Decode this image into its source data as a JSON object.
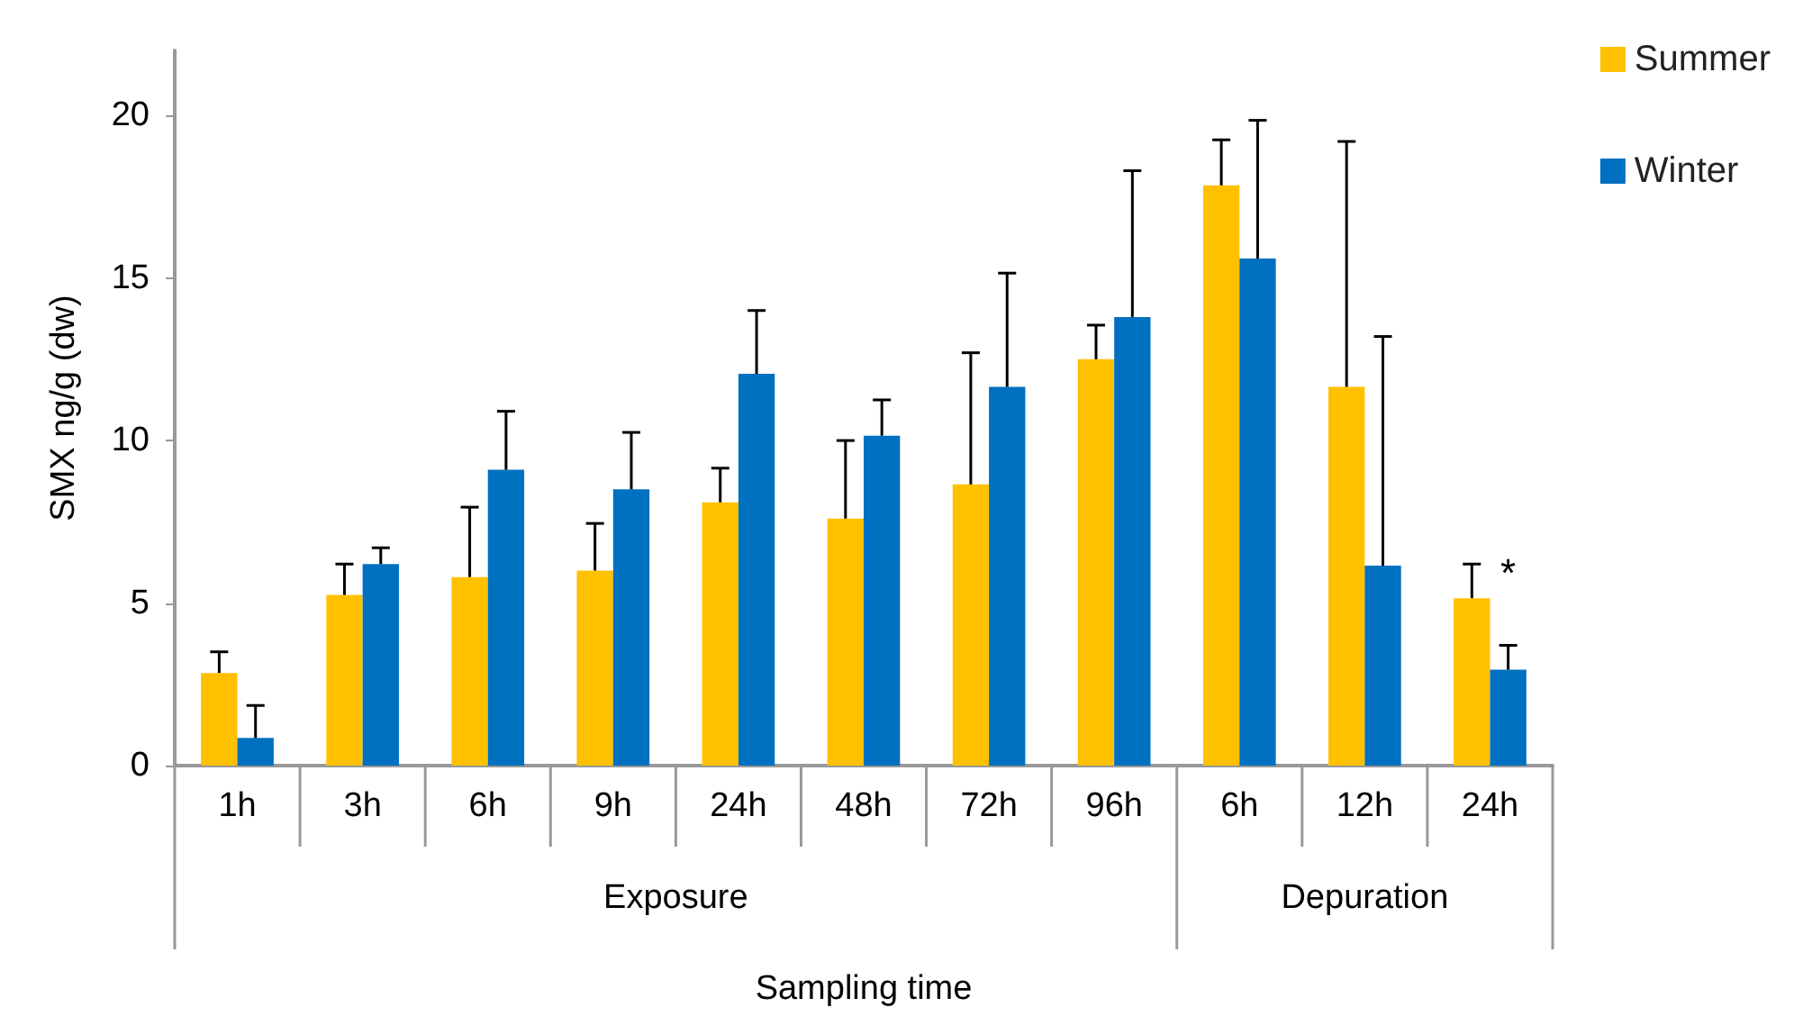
{
  "chart_data": {
    "type": "bar",
    "xlabel": "Sampling time",
    "ylabel": "SMX ng/g (dw)",
    "categories": [
      "1h",
      "3h",
      "6h",
      "9h",
      "24h",
      "48h",
      "72h",
      "96h",
      "6h",
      "12h",
      "24h"
    ],
    "series": [
      {
        "name": "Summer",
        "color": "#ffc000",
        "values": [
          2.85,
          5.25,
          5.8,
          6.0,
          8.1,
          7.6,
          8.65,
          12.5,
          17.85,
          11.65,
          5.15
        ],
        "errors": [
          [
            2.85,
            3.5
          ],
          [
            5.25,
            6.2
          ],
          [
            5.8,
            7.95
          ],
          [
            6.0,
            7.45
          ],
          [
            8.1,
            9.15
          ],
          [
            7.6,
            10.0
          ],
          [
            8.65,
            12.7
          ],
          [
            12.5,
            13.55
          ],
          [
            17.85,
            19.25
          ],
          [
            11.65,
            19.2
          ],
          [
            5.15,
            6.2
          ]
        ]
      },
      {
        "name": "Winter",
        "color": "#0070c0",
        "values": [
          0.85,
          6.2,
          9.1,
          8.5,
          12.05,
          10.15,
          11.65,
          13.8,
          15.6,
          6.15,
          2.95
        ],
        "errors": [
          [
            0.85,
            1.85
          ],
          [
            6.2,
            6.7
          ],
          [
            9.1,
            10.9
          ],
          [
            8.5,
            10.25
          ],
          [
            12.05,
            14.0
          ],
          [
            10.15,
            11.25
          ],
          [
            11.65,
            15.15
          ],
          [
            13.8,
            18.3
          ],
          [
            15.6,
            19.85
          ],
          [
            6.15,
            13.2
          ],
          [
            2.95,
            3.7
          ]
        ]
      }
    ],
    "annotations": [
      "Exposure",
      "Depuration",
      "*"
    ],
    "ylim": [
      0,
      22
    ],
    "yticks": [
      0,
      5,
      10,
      15,
      20
    ],
    "grid": false,
    "legend": "top right"
  }
}
